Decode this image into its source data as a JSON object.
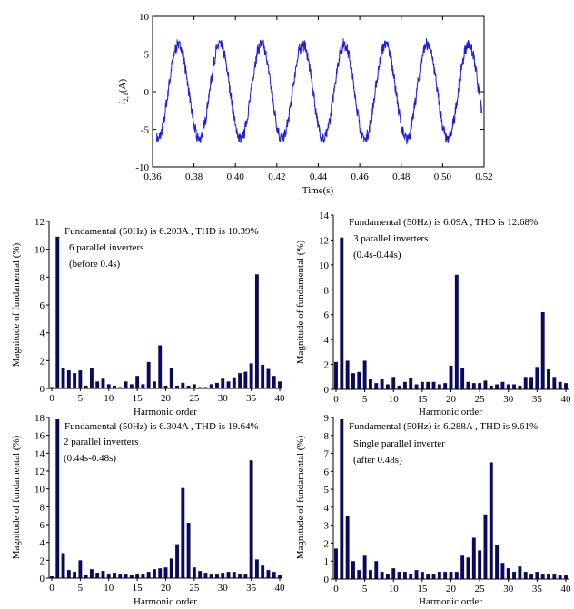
{
  "chart_data": [
    {
      "type": "line",
      "id": "waveform",
      "xlabel": "Time(s)",
      "ylabel": "i",
      "ylabel_sub": "2,1",
      "ylabel_unit": "(A)",
      "xlim": [
        0.36,
        0.52
      ],
      "ylim": [
        -10,
        10
      ],
      "xticks": [
        "0.36",
        "0.38",
        "0.40",
        "0.42",
        "0.44",
        "0.46",
        "0.48",
        "0.50",
        "0.52"
      ],
      "yticks": [
        "-10",
        "-5",
        "0",
        "5",
        "10"
      ],
      "amplitude": 6.3,
      "frequency_hz": 50,
      "t_start": 0.362,
      "t_end": 0.519,
      "series_color": "#1f1fd6"
    },
    {
      "type": "bar",
      "id": "spectrum-6",
      "xlabel": "Harmonic order",
      "ylabel": "Magnitude of fundamental (%)",
      "xlim": [
        0,
        40
      ],
      "ylim": [
        0,
        12
      ],
      "xticks": [
        "0",
        "5",
        "10",
        "15",
        "20",
        "25",
        "30",
        "35",
        "40"
      ],
      "yticks": [
        "0",
        "2",
        "4",
        "6",
        "8",
        "10",
        "12"
      ],
      "annotation": [
        "Fundamental (50Hz) is 6.203A , THD is 10.39%",
        "6 parallel inverters",
        "(before 0.4s)"
      ],
      "values": [
        0.1,
        10.9,
        1.5,
        1.3,
        1.1,
        1.3,
        0.2,
        1.5,
        0.5,
        0.7,
        0.3,
        0.2,
        0.1,
        0.5,
        0.3,
        0.9,
        0.3,
        1.9,
        0.5,
        3.1,
        0.2,
        1.5,
        0.2,
        0.4,
        0.2,
        0.3,
        0.1,
        0.1,
        0.3,
        0.4,
        0.7,
        0.5,
        0.8,
        1.1,
        1.2,
        1.8,
        8.2,
        1.7,
        1.4,
        0.9,
        0.5
      ]
    },
    {
      "type": "bar",
      "id": "spectrum-3",
      "xlabel": "Harmonic order",
      "ylabel": "Magnitude of fundamental (%)",
      "xlim": [
        0,
        40
      ],
      "ylim": [
        0,
        14
      ],
      "xticks": [
        "0",
        "5",
        "10",
        "15",
        "20",
        "25",
        "30",
        "35",
        "40"
      ],
      "yticks": [
        "0",
        "2",
        "4",
        "6",
        "8",
        "10",
        "12",
        "14"
      ],
      "annotation": [
        "Fundamental (50Hz) is 6.09A , THD is 12.68%",
        "3 parallel inverters",
        "(0.4s-0.44s)"
      ],
      "values": [
        2.2,
        12.2,
        2.3,
        1.3,
        1.4,
        2.3,
        0.8,
        0.5,
        0.8,
        0.4,
        1.0,
        0.3,
        0.6,
        0.9,
        0.4,
        0.6,
        0.6,
        0.6,
        0.4,
        0.5,
        1.9,
        9.2,
        1.7,
        0.6,
        0.5,
        0.5,
        0.7,
        0.3,
        0.4,
        0.6,
        0.4,
        0.4,
        0.3,
        1.0,
        1.0,
        1.8,
        6.2,
        1.6,
        1.0,
        0.6,
        0.5
      ]
    },
    {
      "type": "bar",
      "id": "spectrum-2",
      "xlabel": "Harmonic order",
      "ylabel": "Magnitude of fundamental (%)",
      "xlim": [
        0,
        40
      ],
      "ylim": [
        0,
        18
      ],
      "xticks": [
        "0",
        "5",
        "10",
        "15",
        "20",
        "25",
        "30",
        "35",
        "40"
      ],
      "yticks": [
        "0",
        "2",
        "4",
        "6",
        "8",
        "10",
        "12",
        "14",
        "16",
        "18"
      ],
      "annotation": [
        "Fundamental (50Hz) is 6.304A , THD is 19.64%",
        "2 parallel inverters",
        "(0.44s-0.48s)"
      ],
      "values": [
        0.2,
        17.8,
        2.8,
        0.9,
        0.7,
        2.0,
        0.4,
        1.0,
        0.6,
        0.8,
        0.5,
        0.6,
        0.5,
        0.5,
        0.4,
        0.5,
        0.5,
        0.7,
        1.0,
        1.1,
        1.2,
        2.2,
        3.8,
        10.1,
        6.2,
        1.2,
        0.8,
        0.6,
        0.5,
        0.5,
        0.6,
        0.7,
        0.7,
        0.5,
        0.5,
        13.2,
        2.1,
        1.4,
        0.9,
        0.7,
        0.4
      ]
    },
    {
      "type": "bar",
      "id": "spectrum-1",
      "xlabel": "Harmonic order",
      "ylabel": "Magnitude of fundamental (%)",
      "xlim": [
        0,
        40
      ],
      "ylim": [
        0,
        9
      ],
      "xticks": [
        "0",
        "5",
        "10",
        "15",
        "20",
        "25",
        "30",
        "35",
        "40"
      ],
      "yticks": [
        "0",
        "1",
        "2",
        "3",
        "4",
        "5",
        "6",
        "7",
        "8",
        "9"
      ],
      "annotation": [
        "Fundamental (50Hz) is 6.288A , THD is 9.61%",
        "Single parallel inverter",
        "(after 0.48s)"
      ],
      "values": [
        1.7,
        8.9,
        3.5,
        1.0,
        0.5,
        1.3,
        0.5,
        1.0,
        0.4,
        0.3,
        0.6,
        0.4,
        0.4,
        0.3,
        0.5,
        0.4,
        0.3,
        0.3,
        0.4,
        0.4,
        0.4,
        0.4,
        1.3,
        1.2,
        2.3,
        1.6,
        3.6,
        6.5,
        1.9,
        0.9,
        0.6,
        0.4,
        0.7,
        0.4,
        0.3,
        0.4,
        0.3,
        0.3,
        0.3,
        0.2,
        0.2
      ]
    }
  ]
}
